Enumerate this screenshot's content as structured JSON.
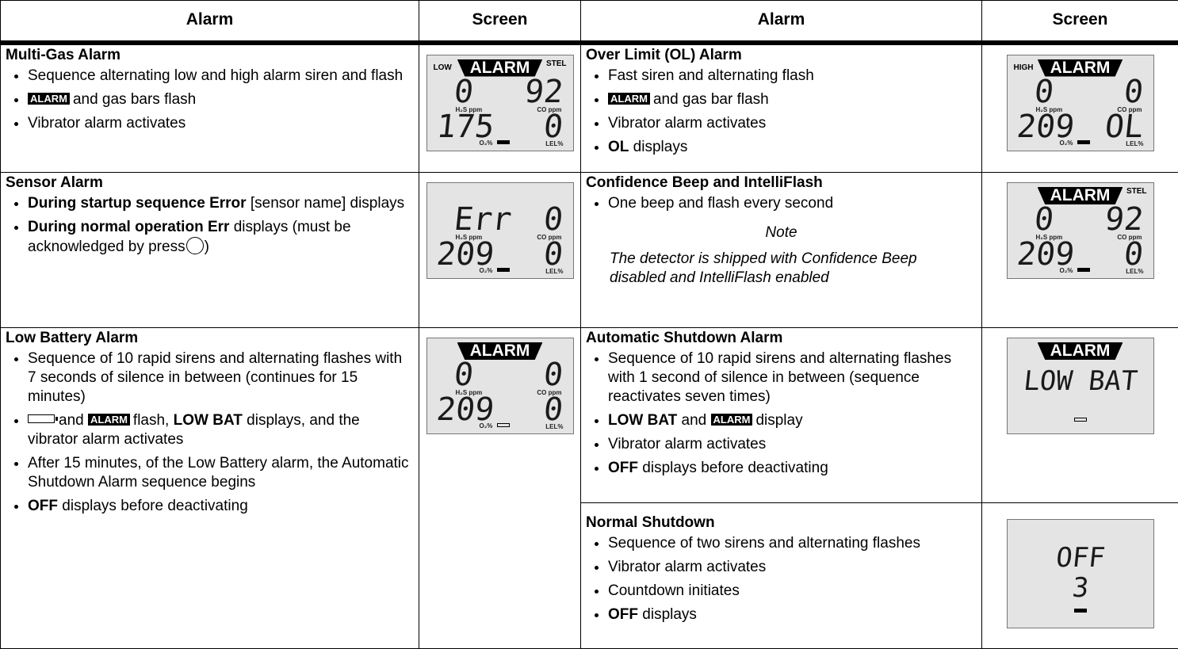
{
  "header": {
    "columns": [
      "Alarm",
      "Screen",
      "Alarm",
      "Screen"
    ]
  },
  "alarms": [
    {
      "title": "Multi-Gas Alarm",
      "bullets": [
        [
          "Sequence alternating low and high alarm siren and flash"
        ],
        [
          "ALARM",
          "and gas bars flash"
        ],
        [
          "Vibrator alarm activates"
        ]
      ],
      "screen": {
        "left": "LOW",
        "banner": "ALARM",
        "right": "STEL",
        "readings": [
          "0",
          "92",
          "175",
          "0"
        ],
        "labels": [
          "H₂S ppm",
          "CO ppm",
          "O₂%",
          "LEL%"
        ]
      }
    },
    {
      "title": "Over Limit (OL) Alarm",
      "bullets": [
        [
          "Fast siren and alternating flash"
        ],
        [
          "ALARM",
          "and gas bar flash"
        ],
        [
          "Vibrator alarm activates"
        ],
        [
          "OL",
          "displays"
        ]
      ],
      "screen": {
        "left": "HIGH",
        "banner": "ALARM",
        "readings": [
          "0",
          "0",
          "209",
          "OL"
        ],
        "labels": [
          "H₂S ppm",
          "CO ppm",
          "O₂%",
          "LEL%"
        ]
      }
    },
    {
      "title": "Sensor Alarm",
      "bullets": [
        [
          "During startup sequence Error",
          "[sensor name] displays"
        ],
        [
          "During normal operation Err",
          "displays (must be acknowledged by press",
          ")"
        ]
      ],
      "screen": {
        "readings": [
          "Err",
          "0",
          "209",
          "0"
        ],
        "labels": [
          "H₂S ppm",
          "CO ppm",
          "O₂%",
          "LEL%"
        ]
      }
    },
    {
      "title": "Confidence Beep and IntelliFlash",
      "bullets": [
        [
          "One beep and flash every second"
        ]
      ],
      "note": {
        "heading": "Note",
        "text": "The detector is shipped with Confidence Beep disabled and IntelliFlash enabled"
      },
      "screen": {
        "banner": "ALARM",
        "right": "STEL",
        "readings": [
          "0",
          "92",
          "209",
          "0"
        ],
        "labels": [
          "H₂S ppm",
          "CO ppm",
          "O₂%",
          "LEL%"
        ]
      }
    },
    {
      "title": "Low Battery Alarm",
      "bullets": [
        [
          "Sequence of 10 rapid sirens and alternating flashes with 7 seconds of silence in between (continues for 15 minutes)"
        ],
        [
          "and",
          "ALARM",
          "flash,",
          "LOW BAT",
          "displays, and the vibrator alarm activates"
        ],
        [
          "After 15 minutes, of the Low Battery alarm, the Automatic Shutdown Alarm sequence begins"
        ],
        [
          "OFF",
          "displays before deactivating"
        ]
      ],
      "screen": {
        "banner": "ALARM",
        "readings": [
          "0",
          "0",
          "209",
          "0"
        ],
        "labels": [
          "H₂S ppm",
          "CO ppm",
          "O₂%",
          "LEL%"
        ]
      }
    },
    {
      "title": "Automatic Shutdown Alarm",
      "bullets": [
        [
          "Sequence of 10 rapid sirens and alternating flashes with 1 second of silence in between (sequence reactivates seven times)"
        ],
        [
          "LOW BAT",
          "and",
          "ALARM",
          "display"
        ],
        [
          "Vibrator alarm activates"
        ],
        [
          "OFF",
          "displays before deactivating"
        ]
      ],
      "screen": {
        "banner": "ALARM",
        "lines": [
          "LOW BAT"
        ]
      }
    },
    {
      "title": "Normal Shutdown",
      "bullets": [
        [
          "Sequence of two sirens and alternating flashes"
        ],
        [
          "Vibrator alarm activates"
        ],
        [
          "Countdown initiates"
        ],
        [
          "OFF",
          "displays"
        ]
      ],
      "screen": {
        "lines": [
          "OFF",
          "3"
        ]
      }
    }
  ]
}
